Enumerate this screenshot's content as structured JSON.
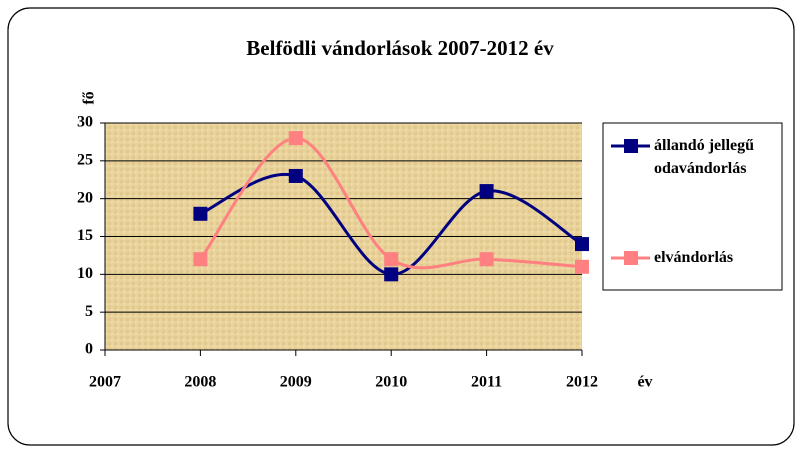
{
  "chart_data": {
    "type": "line",
    "title": "Belfödli vándorlások 2007-2012 év",
    "y_label": "fő",
    "x_label": "év",
    "x": [
      2008,
      2009,
      2010,
      2011,
      2012
    ],
    "xlim": [
      2007,
      2012
    ],
    "xticks": [
      2007,
      2008,
      2009,
      2010,
      2011,
      2012
    ],
    "ylim": [
      0,
      30
    ],
    "yticks": [
      0,
      5,
      10,
      15,
      20,
      25,
      30
    ],
    "grid": true,
    "smooth": true,
    "legend": "right",
    "series": [
      {
        "name": "állandó jellegű odavándorlás",
        "color": "#000080",
        "values": [
          18,
          23,
          10,
          21,
          14
        ]
      },
      {
        "name": "elvándorlás",
        "color": "#ff8080",
        "values": [
          12,
          28,
          12,
          12,
          11
        ]
      }
    ]
  }
}
